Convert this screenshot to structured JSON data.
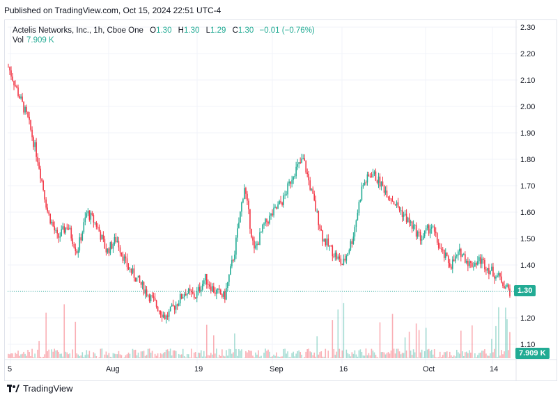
{
  "header": {
    "published": "Published on TradingView.com, Oct 15, 2024 22:51 UTC-4"
  },
  "legend": {
    "symbol": "Actelis Networks, Inc., 1h, Cboe One",
    "open_label": "O",
    "open": "1.30",
    "high_label": "H",
    "high": "1.30",
    "low_label": "L",
    "low": "1.29",
    "close_label": "C",
    "close": "1.30",
    "change": "−0.01 (−0.76%)",
    "vol_label": "Vol",
    "vol": "7.909 K"
  },
  "badges": {
    "last_price": "1.30",
    "last_volume": "7.909 K"
  },
  "footer": {
    "brand": "TradingView"
  },
  "colors": {
    "up": "#22ab94",
    "down": "#f23645",
    "grid": "#f0f3fa",
    "axis_text": "#131722"
  },
  "chart_data": {
    "type": "candlestick",
    "title": "Actelis Networks, Inc., 1h, Cboe One",
    "y_axis_ticks": [
      "2.30",
      "2.20",
      "2.10",
      "2.00",
      "1.90",
      "1.80",
      "1.70",
      "1.60",
      "1.50",
      "1.40",
      "1.30",
      "1.20",
      "1.10"
    ],
    "ylim": [
      1.1,
      2.3
    ],
    "x_axis_ticks": [
      "5",
      "Aug",
      "19",
      "Sep",
      "16",
      "Oct",
      "14"
    ],
    "last_price": 1.3,
    "series": [
      {
        "name": "price",
        "anchors": [
          [
            "5",
            2.15
          ],
          [
            "5",
            2.05
          ],
          [
            "5",
            1.95
          ],
          [
            "5",
            1.8
          ],
          [
            "5",
            1.6
          ],
          [
            "5",
            1.5
          ],
          [
            "5",
            1.55
          ],
          [
            "5",
            1.45
          ],
          [
            "5",
            1.6
          ],
          [
            "5",
            1.55
          ],
          [
            "5",
            1.45
          ],
          [
            "5",
            1.5
          ],
          [
            "5",
            1.4
          ],
          [
            "Aug",
            1.35
          ],
          [
            "Aug",
            1.3
          ],
          [
            "Aug",
            1.25
          ],
          [
            "Aug",
            1.2
          ],
          [
            "Aug",
            1.25
          ],
          [
            "Aug",
            1.3
          ],
          [
            "Aug",
            1.28
          ],
          [
            "Aug",
            1.35
          ],
          [
            "Aug",
            1.3
          ],
          [
            "19",
            1.28
          ],
          [
            "19",
            1.45
          ],
          [
            "19",
            1.7
          ],
          [
            "19",
            1.45
          ],
          [
            "19",
            1.55
          ],
          [
            "19",
            1.6
          ],
          [
            "Sep",
            1.65
          ],
          [
            "Sep",
            1.75
          ],
          [
            "Sep",
            1.8
          ],
          [
            "Sep",
            1.65
          ],
          [
            "Sep",
            1.5
          ],
          [
            "Sep",
            1.45
          ],
          [
            "Sep",
            1.4
          ],
          [
            "Sep",
            1.5
          ],
          [
            "16",
            1.7
          ],
          [
            "16",
            1.75
          ],
          [
            "16",
            1.7
          ],
          [
            "16",
            1.65
          ],
          [
            "16",
            1.6
          ],
          [
            "16",
            1.55
          ],
          [
            "16",
            1.5
          ],
          [
            "16",
            1.55
          ],
          [
            "Oct",
            1.45
          ],
          [
            "Oct",
            1.4
          ],
          [
            "Oct",
            1.45
          ],
          [
            "Oct",
            1.4
          ],
          [
            "Oct",
            1.42
          ],
          [
            "14",
            1.38
          ],
          [
            "14",
            1.35
          ],
          [
            "14",
            1.3
          ]
        ]
      }
    ],
    "volume_spikes": [
      "5",
      "Aug",
      "19",
      "Sep",
      "16",
      "Oct",
      "14"
    ]
  }
}
